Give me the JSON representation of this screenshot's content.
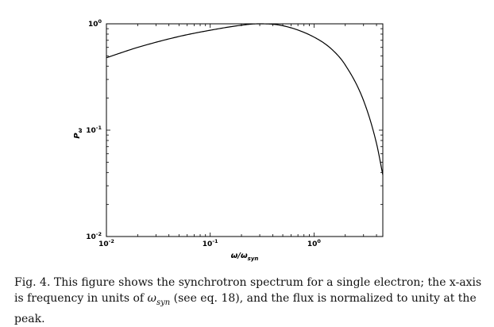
{
  "chart_data": {
    "type": "line",
    "title": "",
    "xlabel_base": "ω/ω",
    "xlabel_sub": "syn",
    "ylabel_base": "P",
    "ylabel_sub": "ω",
    "xscale": "log",
    "yscale": "log",
    "xlim": [
      0.01,
      4.6
    ],
    "ylim": [
      0.01,
      1.0
    ],
    "xticks": [
      {
        "value": 0.01,
        "base": "10",
        "exp": "-2"
      },
      {
        "value": 0.1,
        "base": "10",
        "exp": "-1"
      },
      {
        "value": 1,
        "base": "10",
        "exp": "0"
      }
    ],
    "yticks": [
      {
        "value": 0.01,
        "base": "10",
        "exp": "-2"
      },
      {
        "value": 0.1,
        "base": "10",
        "exp": "-1"
      },
      {
        "value": 1,
        "base": "10",
        "exp": "0"
      }
    ],
    "series": [
      {
        "name": "synchrotron spectrum (single electron)",
        "x": [
          0.01,
          0.02,
          0.05,
          0.1,
          0.2,
          0.29,
          0.5,
          1.0,
          1.5,
          2.0,
          3.0,
          4.0,
          4.6
        ],
        "y": [
          0.48,
          0.6,
          0.76,
          0.87,
          0.97,
          1.0,
          0.96,
          0.75,
          0.57,
          0.41,
          0.19,
          0.075,
          0.038
        ]
      }
    ],
    "grid": false
  },
  "caption": {
    "text_before": "Fig. 4. This figure shows the synchrotron spectrum for a single electron; the x-axis is frequency in units of ",
    "omega": "ω",
    "omega_sub": "syn",
    "text_after": " (see eq. 18), and the flux is normalized to unity at the peak."
  }
}
